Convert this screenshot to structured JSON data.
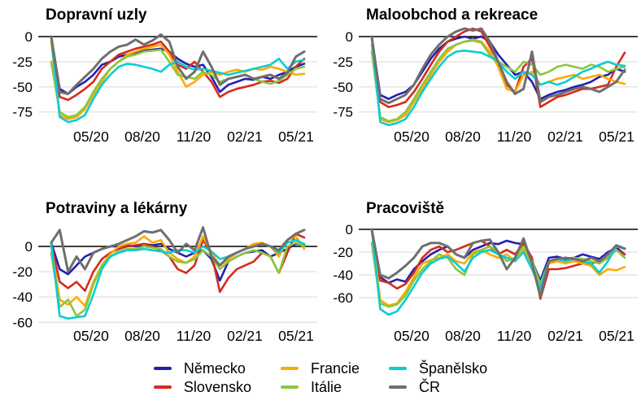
{
  "legend": {
    "items": [
      {
        "label": "Německo",
        "color": "#2121b0"
      },
      {
        "label": "Slovensko",
        "color": "#d62b1e"
      },
      {
        "label": "Francie",
        "color": "#ffa900"
      },
      {
        "label": "Itálie",
        "color": "#8cc63e"
      },
      {
        "label": "Španělsko",
        "color": "#09cdd4"
      },
      {
        "label": "ČR",
        "color": "#6f6f6f"
      }
    ]
  },
  "chart_data": [
    {
      "id": "transit-stations",
      "type": "line",
      "title": "Dopravní uzly",
      "yticks": [
        0,
        -25,
        -50,
        -75
      ],
      "ylim": [
        -93,
        10.5
      ],
      "grid": "horizontal",
      "legend_position": "bottom-shared",
      "xticklabels": [
        "05/20",
        "08/20",
        "11/20",
        "02/21",
        "05/21"
      ],
      "series": [
        {
          "name": "Německo",
          "color": "#2121b0",
          "values": [
            0,
            -52,
            -57,
            -50,
            -45,
            -38,
            -28,
            -25,
            -20,
            -18,
            -16,
            -14,
            -13,
            -12,
            -15,
            -22,
            -27,
            -30,
            -28,
            -40,
            -55,
            -48,
            -45,
            -42,
            -43,
            -40,
            -42,
            -38,
            -35,
            -30,
            -27
          ]
        },
        {
          "name": "Slovensko",
          "color": "#d62b1e",
          "values": [
            0,
            -60,
            -63,
            -58,
            -52,
            -45,
            -32,
            -25,
            -18,
            -15,
            -12,
            -10,
            -8,
            -5,
            -15,
            -28,
            -32,
            -25,
            -35,
            -45,
            -60,
            -55,
            -52,
            -50,
            -48,
            -45,
            -44,
            -46,
            -42,
            -30,
            -22
          ]
        },
        {
          "name": "Francie",
          "color": "#ffa900",
          "values": [
            -5,
            -78,
            -82,
            -80,
            -72,
            -58,
            -45,
            -32,
            -25,
            -18,
            -15,
            -12,
            -10,
            -8,
            -18,
            -35,
            -50,
            -45,
            -38,
            -35,
            -38,
            -35,
            -33,
            -35,
            -32,
            -33,
            -30,
            -32,
            -35,
            -38,
            -37
          ]
        },
        {
          "name": "Itálie",
          "color": "#8cc63e",
          "values": [
            -25,
            -75,
            -80,
            -78,
            -70,
            -55,
            -42,
            -32,
            -25,
            -20,
            -18,
            -15,
            -14,
            -13,
            -25,
            -38,
            -40,
            -42,
            -35,
            -38,
            -45,
            -42,
            -40,
            -38,
            -42,
            -45,
            -47,
            -44,
            -38,
            -32,
            -30
          ]
        },
        {
          "name": "Španělsko",
          "color": "#09cdd4",
          "values": [
            0,
            -80,
            -85,
            -83,
            -78,
            -62,
            -48,
            -38,
            -30,
            -27,
            -28,
            -30,
            -32,
            -35,
            -28,
            -25,
            -30,
            -33,
            -32,
            -34,
            -36,
            -38,
            -36,
            -34,
            -32,
            -30,
            -28,
            -22,
            -32,
            -25,
            -23
          ]
        },
        {
          "name": "ČR",
          "color": "#6f6f6f",
          "values": [
            0,
            -55,
            -57,
            -48,
            -40,
            -32,
            -22,
            -15,
            -10,
            -8,
            -3,
            -8,
            -4,
            2,
            -5,
            -30,
            -42,
            -35,
            -15,
            -30,
            -48,
            -42,
            -40,
            -38,
            -42,
            -40,
            -38,
            -42,
            -36,
            -20,
            -15
          ]
        }
      ]
    },
    {
      "id": "retail-recreation",
      "type": "line",
      "title": "Maloobchod a rekreace",
      "yticks": [
        0,
        -25,
        -50,
        -75
      ],
      "ylim": [
        -93,
        10.5
      ],
      "grid": "horizontal",
      "legend_position": "bottom-shared",
      "xticklabels": [
        "05/20",
        "08/20",
        "11/20",
        "02/21",
        "05/21"
      ],
      "series": [
        {
          "name": "Německo",
          "color": "#2121b0",
          "values": [
            0,
            -58,
            -62,
            -58,
            -55,
            -48,
            -35,
            -22,
            -12,
            -5,
            -2,
            0,
            -2,
            0,
            -5,
            -18,
            -28,
            -38,
            -35,
            -45,
            -62,
            -58,
            -55,
            -53,
            -50,
            -48,
            -45,
            -40,
            -38,
            -32,
            -35
          ]
        },
        {
          "name": "Slovensko",
          "color": "#d62b1e",
          "values": [
            0,
            -65,
            -70,
            -68,
            -65,
            -55,
            -42,
            -28,
            -15,
            -5,
            0,
            5,
            8,
            5,
            -10,
            -25,
            -48,
            -55,
            -30,
            -22,
            -70,
            -65,
            -60,
            -58,
            -55,
            -52,
            -52,
            -50,
            -48,
            -30,
            -16
          ]
        },
        {
          "name": "Francie",
          "color": "#ffa900",
          "values": [
            -8,
            -82,
            -85,
            -83,
            -78,
            -65,
            -52,
            -38,
            -25,
            -15,
            -8,
            -5,
            -3,
            -5,
            -15,
            -30,
            -52,
            -55,
            -38,
            -35,
            -48,
            -45,
            -42,
            -40,
            -38,
            -42,
            -40,
            -38,
            -42,
            -45,
            -47
          ]
        },
        {
          "name": "Itálie",
          "color": "#8cc63e",
          "values": [
            -15,
            -80,
            -84,
            -82,
            -75,
            -62,
            -48,
            -35,
            -22,
            -12,
            -8,
            -5,
            -4,
            -6,
            -18,
            -25,
            -30,
            -35,
            -25,
            -28,
            -38,
            -35,
            -30,
            -28,
            -30,
            -32,
            -28,
            -30,
            -35,
            -32,
            -30
          ]
        },
        {
          "name": "Španělsko",
          "color": "#09cdd4",
          "values": [
            0,
            -85,
            -88,
            -86,
            -82,
            -70,
            -55,
            -42,
            -30,
            -20,
            -15,
            -14,
            -15,
            -16,
            -20,
            -25,
            -35,
            -42,
            -35,
            -38,
            -48,
            -45,
            -48,
            -45,
            -40,
            -35,
            -32,
            -28,
            -25,
            -28,
            -29
          ]
        },
        {
          "name": "ČR",
          "color": "#6f6f6f",
          "values": [
            0,
            -62,
            -66,
            -62,
            -58,
            -48,
            -32,
            -18,
            -8,
            0,
            5,
            8,
            6,
            8,
            -5,
            -25,
            -45,
            -57,
            -52,
            -15,
            -65,
            -60,
            -58,
            -55,
            -52,
            -50,
            -52,
            -55,
            -50,
            -45,
            -33
          ]
        }
      ]
    },
    {
      "id": "grocery-pharmacy",
      "type": "line",
      "title": "Potraviny a lékárny",
      "yticks": [
        0,
        -20,
        -40,
        -60
      ],
      "ylim": [
        -63,
        19.3
      ],
      "grid": "horizontal",
      "legend_position": "bottom-shared",
      "xticklabels": [
        "05/20",
        "08/20",
        "11/20",
        "02/21",
        "05/21"
      ],
      "series": [
        {
          "name": "Německo",
          "color": "#2121b0",
          "values": [
            3,
            -18,
            -22,
            -15,
            -8,
            -5,
            -2,
            0,
            0,
            1,
            0,
            2,
            1,
            2,
            -2,
            -5,
            -8,
            -5,
            -3,
            -10,
            -27,
            -12,
            -8,
            -5,
            -4,
            -3,
            -8,
            -5,
            -2,
            2,
            1
          ]
        },
        {
          "name": "Slovensko",
          "color": "#d62b1e",
          "values": [
            2,
            -28,
            -33,
            -28,
            -35,
            -20,
            -10,
            -5,
            -2,
            0,
            1,
            2,
            0,
            -3,
            -8,
            -18,
            -21,
            -15,
            5,
            -5,
            -36,
            -25,
            -18,
            -15,
            -12,
            -5,
            -8,
            -21,
            -5,
            10,
            7
          ]
        },
        {
          "name": "Francie",
          "color": "#ffa900",
          "values": [
            0,
            -42,
            -46,
            -40,
            -47,
            -28,
            -15,
            -6,
            0,
            2,
            3,
            8,
            3,
            5,
            -5,
            -10,
            -13,
            -8,
            8,
            -5,
            -15,
            -10,
            -5,
            -2,
            2,
            3,
            0,
            -8,
            5,
            8,
            -2
          ]
        },
        {
          "name": "Itálie",
          "color": "#8cc63e",
          "values": [
            -5,
            -48,
            -42,
            -55,
            -50,
            -30,
            -15,
            -8,
            -4,
            -2,
            -2,
            0,
            -1,
            -2,
            -8,
            -12,
            -13,
            -10,
            -3,
            -8,
            -18,
            -12,
            -8,
            -5,
            -3,
            -5,
            -8,
            -21,
            0,
            3,
            0
          ]
        },
        {
          "name": "Španělsko",
          "color": "#09cdd4",
          "values": [
            2,
            -55,
            -57,
            -56,
            -55,
            -38,
            -18,
            -8,
            -5,
            -3,
            -3,
            -2,
            -3,
            -4,
            -5,
            -3,
            -3,
            -5,
            0,
            -4,
            -10,
            -8,
            -5,
            -2,
            0,
            2,
            0,
            -5,
            3,
            5,
            2
          ]
        },
        {
          "name": "ČR",
          "color": "#6f6f6f",
          "values": [
            3,
            13,
            -20,
            -8,
            -18,
            -5,
            -2,
            0,
            2,
            5,
            8,
            12,
            11,
            13,
            5,
            -5,
            2,
            -3,
            15,
            -8,
            -15,
            -8,
            -5,
            -2,
            0,
            2,
            0,
            -3,
            5,
            10,
            13
          ]
        }
      ]
    },
    {
      "id": "workplaces",
      "type": "line",
      "title": "Pracoviště",
      "yticks": [
        0,
        -20,
        -40,
        -60
      ],
      "ylim": [
        -85,
        10
      ],
      "grid": "horizontal",
      "legend_position": "bottom-shared",
      "xticklabels": [
        "05/20",
        "08/20",
        "11/20",
        "02/21",
        "05/21"
      ],
      "series": [
        {
          "name": "Německo",
          "color": "#2121b0",
          "values": [
            0,
            -42,
            -47,
            -44,
            -46,
            -35,
            -28,
            -22,
            -18,
            -15,
            -22,
            -25,
            -18,
            -15,
            -12,
            -13,
            -10,
            -12,
            -13,
            -28,
            -45,
            -25,
            -24,
            -26,
            -25,
            -22,
            -24,
            -26,
            -20,
            -16,
            -22
          ]
        },
        {
          "name": "Slovensko",
          "color": "#d62b1e",
          "values": [
            0,
            -45,
            -47,
            -52,
            -48,
            -38,
            -25,
            -18,
            -15,
            -20,
            -18,
            -15,
            -12,
            -10,
            -15,
            -22,
            -18,
            -22,
            -12,
            -25,
            -61,
            -35,
            -35,
            -34,
            -32,
            -30,
            -30,
            -28,
            -25,
            -18,
            -22
          ]
        },
        {
          "name": "Francie",
          "color": "#ffa900",
          "values": [
            0,
            -62,
            -67,
            -65,
            -55,
            -42,
            -30,
            -27,
            -25,
            -22,
            -28,
            -30,
            -20,
            -18,
            -22,
            -25,
            -22,
            -28,
            -18,
            -30,
            -55,
            -30,
            -28,
            -30,
            -28,
            -30,
            -32,
            -40,
            -35,
            -36,
            -33
          ]
        },
        {
          "name": "Itálie",
          "color": "#8cc63e",
          "values": [
            -12,
            -65,
            -68,
            -66,
            -58,
            -45,
            -35,
            -28,
            -22,
            -25,
            -35,
            -40,
            -22,
            -18,
            -15,
            -20,
            -28,
            -25,
            -15,
            -28,
            -48,
            -28,
            -26,
            -28,
            -25,
            -26,
            -28,
            -30,
            -25,
            -18,
            -25
          ]
        },
        {
          "name": "Španělsko",
          "color": "#09cdd4",
          "values": [
            0,
            -70,
            -75,
            -72,
            -62,
            -50,
            -38,
            -30,
            -26,
            -24,
            -30,
            -37,
            -25,
            -20,
            -18,
            -22,
            -25,
            -28,
            -20,
            -35,
            -52,
            -28,
            -26,
            -28,
            -26,
            -28,
            -30,
            -38,
            -28,
            -15,
            -17
          ]
        },
        {
          "name": "ČR",
          "color": "#6f6f6f",
          "values": [
            0,
            -40,
            -43,
            -38,
            -32,
            -25,
            -15,
            -12,
            -12,
            -15,
            -22,
            -25,
            -12,
            -10,
            -9,
            -20,
            -35,
            -25,
            -8,
            -30,
            -59,
            -28,
            -26,
            -25,
            -26,
            -28,
            -25,
            -28,
            -22,
            -14,
            -17
          ]
        }
      ]
    }
  ]
}
